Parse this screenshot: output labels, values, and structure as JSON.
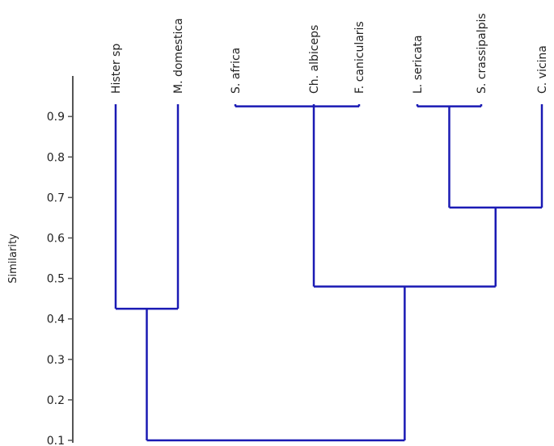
{
  "chart_data": {
    "type": "dendrogram",
    "title": "",
    "ylabel": "Similarity",
    "xlabel": "",
    "ylim": [
      0.1,
      0.95
    ],
    "yticks": [
      "0.1",
      "0.2",
      "0.3",
      "0.4",
      "0.5",
      "0.6",
      "0.7",
      "0.8",
      "0.9"
    ],
    "grid": false,
    "line_color": "#1a1ab4",
    "leaves": [
      "Hister sp",
      "M. domestica",
      "S. africa",
      "Ch. albiceps",
      "F. canicularis",
      "L. sericata",
      "S. crassipalpis",
      "C. vicina"
    ],
    "merges": [
      {
        "a": 2,
        "b": 3,
        "c": 4,
        "similarity": 0.925
      },
      {
        "a": 5,
        "b": 6,
        "similarity": 0.925
      },
      {
        "a": 0,
        "b": 1,
        "similarity": 0.425
      },
      {
        "a": 9,
        "b": 7,
        "similarity": 0.675
      },
      {
        "a": 8,
        "b": 11,
        "similarity": 0.48
      },
      {
        "a": 10,
        "b": 12,
        "similarity": 0.1
      }
    ]
  }
}
